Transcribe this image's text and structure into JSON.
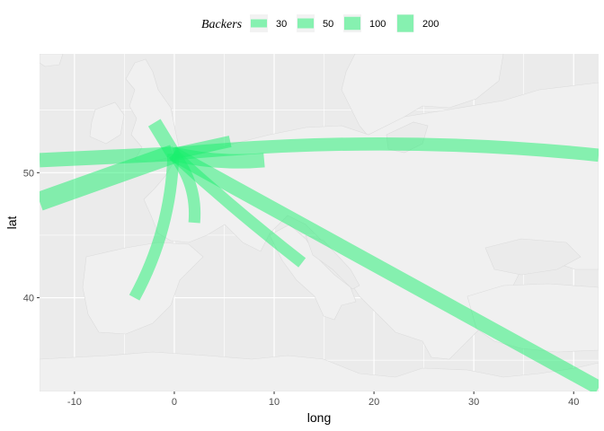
{
  "chart_data": {
    "type": "map-flows",
    "xlabel": "long",
    "ylabel": "lat",
    "xlim": [
      -13.5,
      42.5
    ],
    "ylim": [
      32.5,
      59.5
    ],
    "x_ticks": [
      -10,
      0,
      10,
      20,
      30,
      40
    ],
    "y_ticks": [
      40,
      50
    ],
    "grid": true,
    "legend": {
      "title": "Backers",
      "position": "top",
      "entries": [
        {
          "label": "30",
          "value": 30
        },
        {
          "label": "50",
          "value": 50
        },
        {
          "label": "100",
          "value": 100
        },
        {
          "label": "200",
          "value": 200
        }
      ]
    },
    "line_color": "#19f06e",
    "line_opacity": 0.5,
    "origin": {
      "long": -0.1,
      "lat": 51.5
    },
    "flows": [
      {
        "dest": [
          -13.5,
          47.7
        ],
        "backers": 200,
        "bend": 0.0
      },
      {
        "dest": [
          -13.5,
          51.0
        ],
        "backers": 100,
        "bend": 0.0
      },
      {
        "dest": [
          42.5,
          51.4
        ],
        "backers": 80,
        "bend": -0.05
      },
      {
        "dest": [
          5.6,
          52.5
        ],
        "backers": 60,
        "bend": 0.0
      },
      {
        "dest": [
          9.0,
          51.0
        ],
        "backers": 100,
        "bend": 0.08
      },
      {
        "dest": [
          -2.0,
          54.0
        ],
        "backers": 100,
        "bend": 0.0
      },
      {
        "dest": [
          2.0,
          46.0
        ],
        "backers": 60,
        "bend": -0.2
      },
      {
        "dest": [
          -4.0,
          40.0
        ],
        "backers": 60,
        "bend": -0.12
      },
      {
        "dest": [
          12.8,
          42.8
        ],
        "backers": 60,
        "bend": 0.02
      },
      {
        "dest": [
          42.5,
          32.8
        ],
        "backers": 100,
        "bend": 0.0
      }
    ]
  }
}
